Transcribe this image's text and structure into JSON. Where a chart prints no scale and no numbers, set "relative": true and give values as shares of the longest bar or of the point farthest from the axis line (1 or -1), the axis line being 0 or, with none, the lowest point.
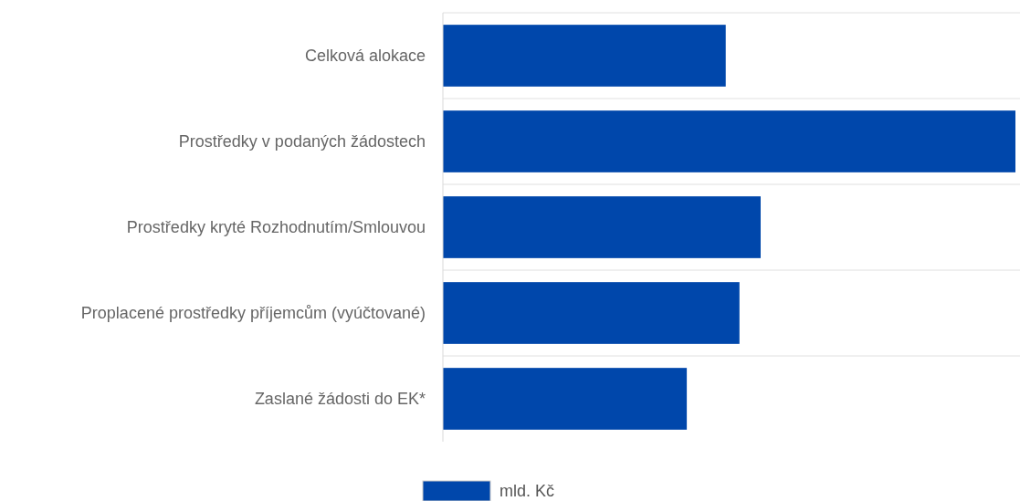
{
  "chart_data": {
    "type": "bar",
    "orientation": "horizontal",
    "relative": true,
    "categories": [
      "Celková alokace",
      "Prostředky v podaných žádostech",
      "Prostředky kryté Rozhodnutím/Smlouvou",
      "Proplacené prostředky příjemcům (vyúčtované)",
      "Zaslané žádosti do EK*"
    ],
    "series": [
      {
        "name": "mld. Kč",
        "color": "#0047ab",
        "values": [
          0.494,
          1,
          0.555,
          0.518,
          0.426
        ]
      }
    ],
    "grid": "y",
    "legend": "bottom"
  }
}
